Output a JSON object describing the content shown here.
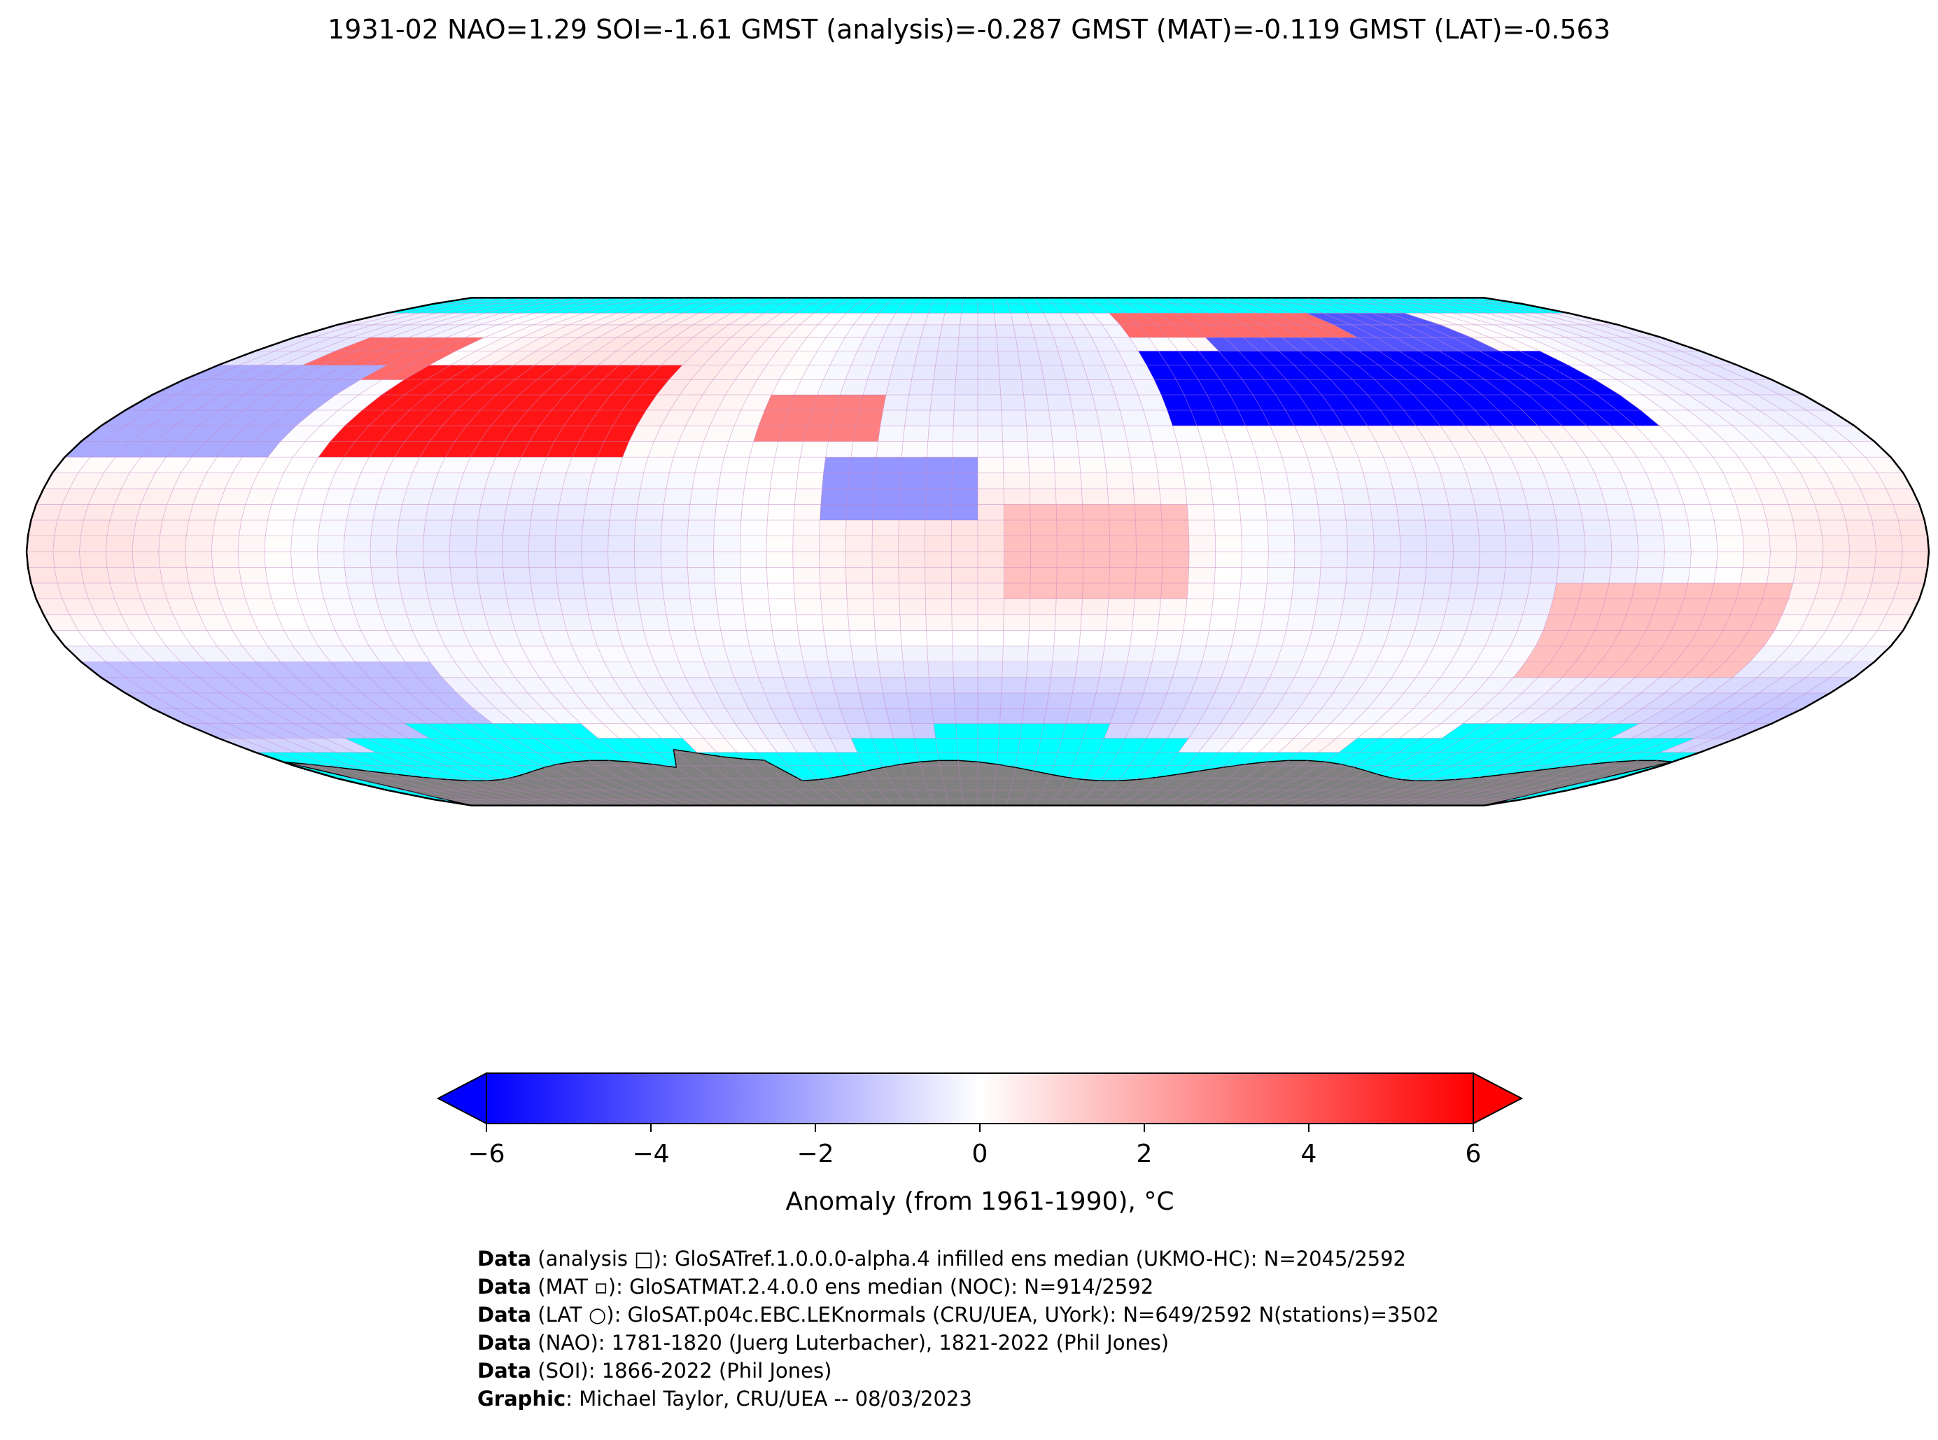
{
  "title": "1931-02 NAO=1.29 SOI=-1.61 GMST (analysis)=-0.287 GMST (MAT)=-0.119 GMST (LAT)=-0.563",
  "colors": {
    "cold": "#0000ff",
    "neutral": "#ffffff",
    "warm": "#ff0000",
    "sea_ice": "#00ffff",
    "land_antarctica": "#808080",
    "gridline": "#c080c0"
  },
  "chart_data": {
    "type": "heatmap",
    "projection": "Robinson",
    "colorbar": {
      "min": -6,
      "max": 6,
      "ticks": [
        -6,
        -4,
        -2,
        0,
        2,
        4,
        6
      ],
      "tick_labels": [
        "−6",
        "−4",
        "−2",
        "0",
        "2",
        "4",
        "6"
      ],
      "label": "Anomaly (from 1961-1990), °C",
      "extend": "both"
    },
    "grid_resolution_deg": 5,
    "regions": [
      {
        "lon": [
          -130,
          -70
        ],
        "lat": [
          30,
          60
        ],
        "value": 5.5
      },
      {
        "lon": [
          -160,
          -130
        ],
        "lat": [
          55,
          70
        ],
        "value": 3.5
      },
      {
        "lon": [
          -45,
          -20
        ],
        "lat": [
          35,
          50
        ],
        "value": 3.0
      },
      {
        "lon": [
          40,
          140
        ],
        "lat": [
          40,
          65
        ],
        "value": -6.0
      },
      {
        "lon": [
          60,
          130
        ],
        "lat": [
          65,
          80
        ],
        "value": -4.0
      },
      {
        "lon": [
          40,
          100
        ],
        "lat": [
          70,
          85
        ],
        "value": 3.5
      },
      {
        "lon": [
          -30,
          0
        ],
        "lat": [
          10,
          30
        ],
        "value": -2.5
      },
      {
        "lon": [
          5,
          40
        ],
        "lat": [
          -15,
          15
        ],
        "value": 1.5
      },
      {
        "lon": [
          110,
          155
        ],
        "lat": [
          -40,
          -10
        ],
        "value": 1.5
      },
      {
        "lon": [
          -180,
          -140
        ],
        "lat": [
          30,
          60
        ],
        "value": -2.0
      },
      {
        "lon": [
          -180,
          -110
        ],
        "lat": [
          -60,
          -35
        ],
        "value": -1.5
      }
    ]
  },
  "credits": [
    {
      "label": "Data",
      "text": " (analysis □): GloSATref.1.0.0.0-alpha.4 infilled ens median (UKMO-HC): N=2045/2592"
    },
    {
      "label": "Data",
      "text": " (MAT ▫): GloSATMAT.2.4.0.0 ens median (NOC): N=914/2592"
    },
    {
      "label": "Data",
      "text": " (LAT ○): GloSAT.p04c.EBC.LEKnormals (CRU/UEA, UYork): N=649/2592 N(stations)=3502"
    },
    {
      "label": "Data",
      "text": " (NAO): 1781-1820 (Juerg Luterbacher), 1821-2022 (Phil Jones)"
    },
    {
      "label": "Data",
      "text": " (SOI): 1866-2022 (Phil Jones)"
    },
    {
      "label": "Graphic",
      "text": ": Michael Taylor, CRU/UEA -- 08/03/2023"
    }
  ]
}
